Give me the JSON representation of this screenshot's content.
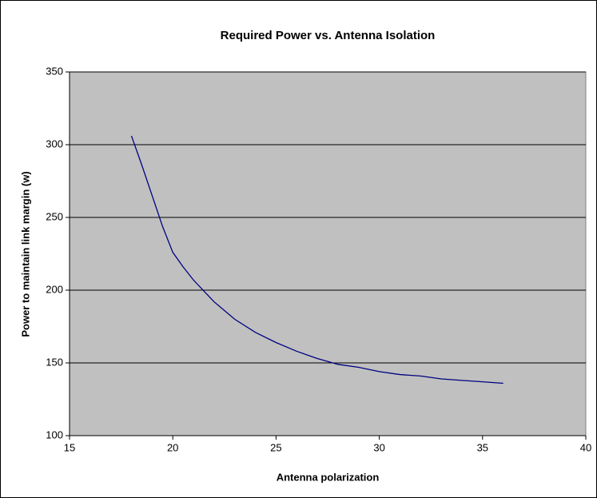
{
  "chart_data": {
    "type": "line",
    "title": "Required Power vs. Antenna Isolation",
    "x_label": "Antenna polarization",
    "y_label": "Power to maintain link margin (w)",
    "x": [
      18,
      18.5,
      19,
      19.5,
      20,
      20.5,
      21,
      22,
      23,
      24,
      25,
      26,
      27,
      28,
      29,
      30,
      31,
      32,
      33,
      34,
      35,
      36
    ],
    "series": [
      {
        "color": "#000080",
        "values": [
          306,
          286,
          265,
          244,
          226,
          216,
          207,
          192,
          180,
          171,
          164,
          158,
          153,
          149,
          147,
          144,
          142,
          141,
          139,
          138,
          137,
          136
        ]
      }
    ],
    "xlim": [
      15,
      40
    ],
    "xticks": [
      15,
      20,
      25,
      30,
      35,
      40
    ],
    "ylim": [
      100,
      350
    ],
    "yticks": [
      100,
      150,
      200,
      250,
      300,
      350
    ],
    "grid": true,
    "plot_background": "#c0c0c0"
  }
}
